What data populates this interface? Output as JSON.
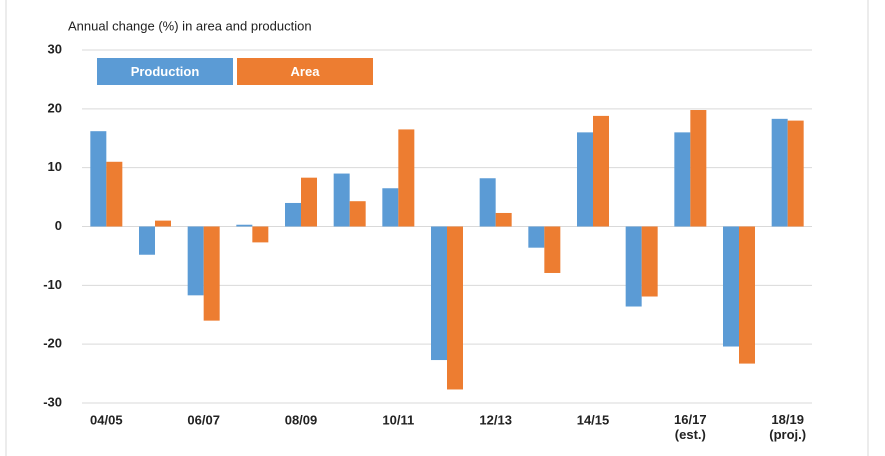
{
  "chart_data": {
    "type": "bar",
    "title": "Annual change (%) in area and production",
    "categories": [
      "04/05",
      null,
      "06/07",
      null,
      "08/09",
      null,
      "10/11",
      null,
      "12/13",
      null,
      "14/15",
      null,
      "16/17\n(est.)",
      null,
      "18/19\n(proj.)"
    ],
    "series": [
      {
        "name": "Production",
        "color": "#5b9bd5",
        "values": [
          16.2,
          -4.8,
          -11.7,
          0.3,
          4.0,
          9.0,
          6.5,
          -22.7,
          8.2,
          -3.6,
          16.0,
          -13.6,
          16.0,
          -20.4,
          18.3
        ]
      },
      {
        "name": "Area",
        "color": "#ed7d31",
        "values": [
          11.0,
          1.0,
          -16.0,
          -2.7,
          8.3,
          4.3,
          16.5,
          -27.7,
          2.3,
          -7.9,
          18.8,
          -11.9,
          19.8,
          -23.3,
          18.0
        ]
      }
    ],
    "ylim": [
      -30,
      30
    ],
    "yticks": [
      -30,
      -20,
      -10,
      0,
      10,
      20,
      30
    ],
    "grid": true,
    "legend": "top-left"
  }
}
